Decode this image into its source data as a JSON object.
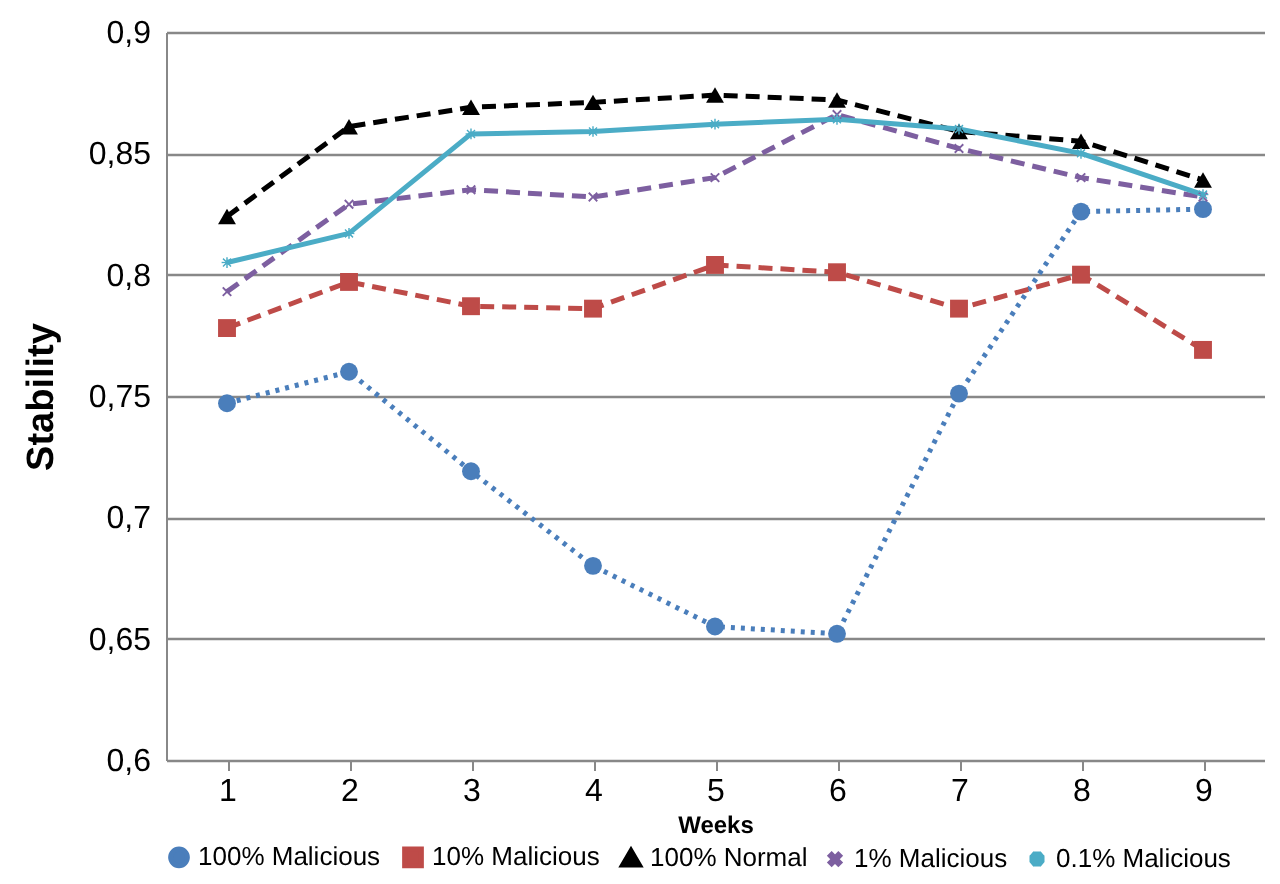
{
  "chart_data": {
    "type": "line",
    "xlabel": "Weeks",
    "ylabel": "Stability",
    "categories": [
      "1",
      "2",
      "3",
      "4",
      "5",
      "6",
      "7",
      "8",
      "9"
    ],
    "ylim": [
      0.6,
      0.9
    ],
    "yticks": [
      {
        "value": 0.6,
        "label": "0,6"
      },
      {
        "value": 0.65,
        "label": "0,65"
      },
      {
        "value": 0.7,
        "label": "0,7"
      },
      {
        "value": 0.75,
        "label": "0,75"
      },
      {
        "value": 0.8,
        "label": "0,8"
      },
      {
        "value": 0.85,
        "label": "0,85"
      },
      {
        "value": 0.9,
        "label": "0,9"
      }
    ],
    "grid": "y",
    "legend": "bottom",
    "series": [
      {
        "name": "100% Malicious",
        "color": "#4a7ebb",
        "marker": "circle",
        "line_style": "dotted",
        "values": [
          0.747,
          0.76,
          0.719,
          0.68,
          0.655,
          0.652,
          0.751,
          0.826,
          0.827
        ]
      },
      {
        "name": "10% Malicious",
        "color": "#be4b48",
        "marker": "square",
        "line_style": "dashed",
        "values": [
          0.778,
          0.797,
          0.787,
          0.786,
          0.804,
          0.801,
          0.786,
          0.8,
          0.769
        ]
      },
      {
        "name": "100% Normal",
        "color": "#000000",
        "marker": "triangle",
        "line_style": "dashed",
        "values": [
          0.824,
          0.861,
          0.869,
          0.871,
          0.874,
          0.872,
          0.859,
          0.855,
          0.839
        ]
      },
      {
        "name": "1% Malicious",
        "color": "#7d5fa0",
        "marker": "cross",
        "line_style": "dashed",
        "values": [
          0.793,
          0.829,
          0.835,
          0.832,
          0.84,
          0.866,
          0.852,
          0.84,
          0.832
        ]
      },
      {
        "name": "0.1% Malicious",
        "color": "#4bacc6",
        "marker": "star",
        "line_style": "solid",
        "values": [
          0.805,
          0.817,
          0.858,
          0.859,
          0.862,
          0.864,
          0.86,
          0.85,
          0.833
        ]
      }
    ]
  }
}
